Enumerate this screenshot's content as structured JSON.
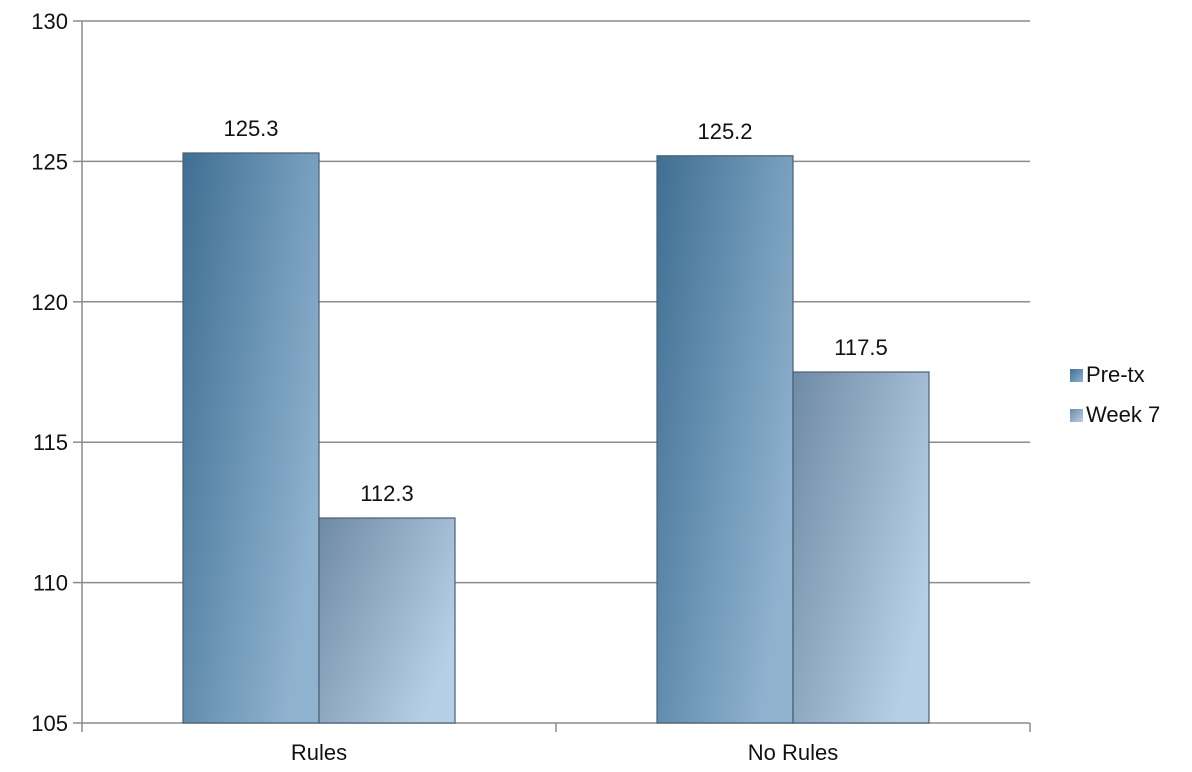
{
  "chart_data": {
    "type": "bar",
    "categories": [
      "Rules",
      "No Rules"
    ],
    "series": [
      {
        "name": "Pre-tx",
        "values": [
          125.3,
          125.2
        ],
        "color_dark": "#3f6f93",
        "color_light": "#8fb2cf"
      },
      {
        "name": "Week 7",
        "values": [
          112.3,
          117.5
        ],
        "color_dark": "#6f8aa6",
        "color_light": "#b7cfe6"
      }
    ],
    "data_labels": [
      [
        "125.3",
        "125.2"
      ],
      [
        "112.3",
        "117.5"
      ]
    ],
    "ylim": [
      105,
      130
    ],
    "yticks": [
      105,
      110,
      115,
      120,
      125,
      130
    ],
    "title": "",
    "xlabel": "",
    "ylabel": "",
    "grid": true,
    "legend_position": "right"
  }
}
